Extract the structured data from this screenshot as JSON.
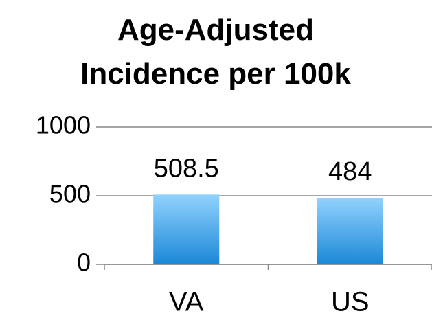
{
  "chart_data": {
    "type": "bar",
    "title": "Age-Adjusted Incidence per 100k",
    "categories": [
      "VA",
      "US"
    ],
    "values": [
      508.5,
      484
    ],
    "color_top": "#92d2ff",
    "color_bottom": "#1a88d6",
    "ylim": [
      0,
      1000
    ],
    "yticks": [
      0,
      500,
      1000
    ],
    "grid": true
  }
}
